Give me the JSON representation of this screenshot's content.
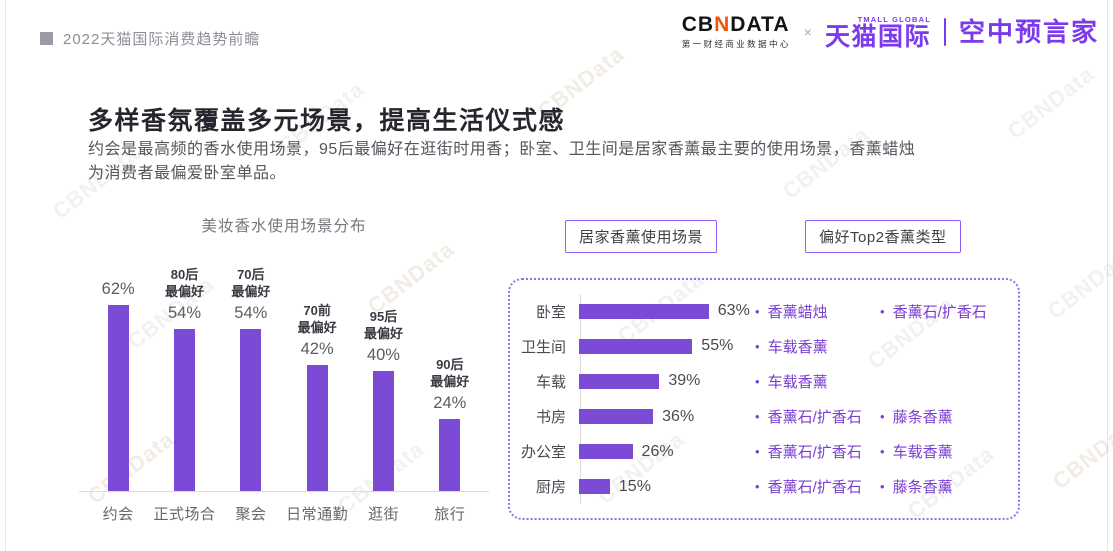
{
  "header": {
    "breadcrumb": "2022天猫国际消费趋势前瞻"
  },
  "brand": {
    "cbndata_prefix": "CB",
    "cbndata_accent": "N",
    "cbndata_suffix": "DATA",
    "cbndata_tagline": "第一财经商业数据中心",
    "times_symbol": "×",
    "tmall_global_label": "TMALL GLOBAL",
    "tmall_name": "天猫国际",
    "campaign_name": "空中预言家"
  },
  "content": {
    "title": "多样香氛覆盖多元场景，提高生活仪式感",
    "body_line1": "约会是最高频的香水使用场景，95后最偏好在逛街时用香；卧室、卫生间是居家香薰最主要的使用场景，香薰蜡烛",
    "body_line2": "为消费者最偏爱卧室单品。"
  },
  "watermark_text": "CBNData",
  "colors": {
    "bar_purple": "#7C4BD6",
    "accent_purple": "#7C3AED",
    "logo_orange": "#F0560A",
    "bullet_purple": "#7A3FD1",
    "box_border_purple": "#8B5CF6",
    "dashed_border_purple": "#9B6BF0",
    "watermark_gray": "rgba(120,120,125,0.10)",
    "watermark_tan": "rgba(190,165,120,0.20)"
  },
  "chart_data": [
    {
      "type": "bar",
      "orientation": "vertical",
      "title": "美妆香水使用场景分布",
      "categories": [
        "约会",
        "正式场合",
        "聚会",
        "日常通勤",
        "逛街",
        "旅行"
      ],
      "values": [
        62,
        54,
        54,
        42,
        40,
        24
      ],
      "unit": "%",
      "value_labels": [
        "62%",
        "54%",
        "54%",
        "42%",
        "40%",
        "24%"
      ],
      "annotations": [
        "",
        "80后\n最偏好",
        "70后\n最偏好",
        "70前\n最偏好",
        "95后\n最偏好",
        "90后\n最偏好"
      ],
      "ylim": [
        0,
        70
      ],
      "grid": false,
      "legend": "none"
    },
    {
      "type": "bar",
      "orientation": "horizontal",
      "title": "居家香薰使用场景",
      "categories": [
        "卧室",
        "卫生间",
        "车载",
        "书房",
        "办公室",
        "厨房"
      ],
      "values": [
        63,
        55,
        39,
        36,
        26,
        15
      ],
      "unit": "%",
      "value_labels": [
        "63%",
        "55%",
        "39%",
        "36%",
        "26%",
        "15%"
      ],
      "xlim": [
        0,
        70
      ],
      "grid": false,
      "legend": "none"
    },
    {
      "type": "table",
      "title": "偏好Top2香薰类型",
      "rows": [
        [
          "香薰蜡烛",
          "香薰石/扩香石"
        ],
        [
          "车载香薰",
          ""
        ],
        [
          "车载香薰",
          ""
        ],
        [
          "香薰石/扩香石",
          "藤条香薰"
        ],
        [
          "香薰石/扩香石",
          "车载香薰"
        ],
        [
          "香薰石/扩香石",
          "藤条香薰"
        ]
      ]
    }
  ]
}
